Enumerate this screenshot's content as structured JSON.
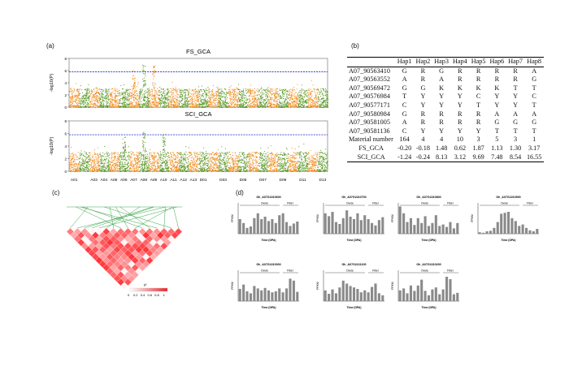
{
  "labels": {
    "a": "(a)",
    "b": "(b)",
    "c": "(c)",
    "d": "(d)"
  },
  "manhattan": {
    "y_label": "-log10(P)",
    "threshold": 5.8,
    "ylim": [
      0,
      8
    ],
    "yticks": [
      "0",
      "2",
      "4",
      "6",
      "8"
    ],
    "chromosomes": [
      "A01",
      "A02",
      "A03",
      "A04",
      "A05",
      "A06",
      "A07",
      "A08",
      "A09",
      "A10",
      "A11",
      "A12",
      "A13",
      "D01",
      "D02",
      "D03",
      "D04",
      "D05",
      "D06",
      "D07",
      "D08",
      "D09",
      "D10",
      "D11",
      "D12",
      "D13"
    ],
    "x_tick_labels": [
      "A01",
      "A03",
      "A04",
      "A05",
      "A06",
      "A07",
      "A08",
      "A09",
      "A10",
      "A11",
      "A12",
      "A13",
      "D01",
      "D03",
      "D05",
      "D07",
      "D09",
      "D11",
      "D13"
    ],
    "colors": {
      "odd": "#f28c1c",
      "even": "#5e9a2a",
      "threshold": "#3344cc"
    },
    "panels": [
      {
        "title": "FS_GCA",
        "peaks": [
          [
            7,
            7.5
          ],
          [
            8,
            7.0
          ],
          [
            6,
            6.1
          ]
        ]
      },
      {
        "title": "SCI_GCA",
        "peaks": [
          [
            7,
            6.4
          ],
          [
            9,
            6.0
          ],
          [
            5,
            5.6
          ]
        ]
      }
    ]
  },
  "haplotype_table": {
    "header": [
      "",
      "Hap1",
      "Hap2",
      "Hap3",
      "Hap4",
      "Hap5",
      "Hap6",
      "Hap7",
      "Hap8"
    ],
    "rows": [
      [
        "A07_90563410",
        "G",
        "R",
        "G",
        "R",
        "R",
        "R",
        "R",
        "A"
      ],
      [
        "A07_90563552",
        "A",
        "R",
        "A",
        "R",
        "R",
        "R",
        "R",
        "G"
      ],
      [
        "A07_90569472",
        "G",
        "G",
        "K",
        "K",
        "K",
        "K",
        "T",
        "T"
      ],
      [
        "A07_90576984",
        "T",
        "Y",
        "Y",
        "Y",
        "C",
        "Y",
        "Y",
        "C"
      ],
      [
        "A07_90577171",
        "C",
        "Y",
        "Y",
        "Y",
        "T",
        "Y",
        "Y",
        "T"
      ],
      [
        "A07_90580984",
        "G",
        "R",
        "R",
        "R",
        "R",
        "A",
        "A",
        "A"
      ],
      [
        "A07_90581005",
        "A",
        "R",
        "R",
        "R",
        "R",
        "G",
        "G",
        "G"
      ],
      [
        "A07_90581136",
        "C",
        "Y",
        "Y",
        "Y",
        "Y",
        "T",
        "T",
        "T"
      ],
      [
        "Material number",
        "164",
        "4",
        "4",
        "10",
        "3",
        "5",
        "3",
        "1"
      ],
      [
        "FS_GCA",
        "-0.20",
        "-0.18",
        "1.48",
        "0.62",
        "1.87",
        "1.13",
        "1.30",
        "3.17"
      ],
      [
        "SCI_GCA",
        "-1.24",
        "-0.24",
        "8.13",
        "3.12",
        "9.69",
        "7.48",
        "8.54",
        "16.55"
      ]
    ]
  },
  "ld_heatmap": {
    "n_snps": 16,
    "legend_title": "r²",
    "legend_ticks": [
      "0",
      "0.2",
      "0.4",
      "0.6",
      "0.8",
      "1"
    ],
    "colors": {
      "low": "#ffffff",
      "high": "#e8262b",
      "lines": "#3aa44a"
    }
  },
  "expression": {
    "y_label": "FPKM",
    "x_label": "Time (DPA)",
    "group_labels": [
      "Ovule",
      "Fiber"
    ],
    "bar_color": "#8a8a8a",
    "charts": [
      {
        "title": "Gh_A07G2210600",
        "values": [
          3,
          2.2,
          1.2,
          1.5,
          3.2,
          4.2,
          3,
          3.5,
          2.6,
          3,
          2.2,
          3.8,
          4.2,
          2.4,
          1.6,
          2.1,
          2.5
        ]
      },
      {
        "title": "Gh_A07G2210700",
        "values": [
          4.2,
          3.6,
          4.5,
          2.4,
          2,
          3.2,
          4.8,
          3.5,
          3,
          4.2,
          2.8,
          3.8,
          3,
          2.2,
          1.7,
          2.8,
          3.4
        ]
      },
      {
        "title": "Gh_A07G2210800",
        "values": [
          5.6,
          4.2,
          2.4,
          3.2,
          1.8,
          3.2,
          2.2,
          3.6,
          1.6,
          2.2,
          3.8,
          1.6,
          1.9,
          1.4,
          2.4,
          1.1,
          2.2
        ]
      },
      {
        "title": "Gh_A07G2210900",
        "values": [
          0.3,
          0.2,
          0.5,
          0.6,
          1.2,
          2.4,
          4.1,
          4.3,
          4.5,
          3.2,
          2.6,
          1.6,
          1.9,
          1.2,
          0.7,
          0.5,
          1.0
        ]
      },
      {
        "title": "Gh_A07G2210000",
        "values": [
          2.5,
          3.4,
          2,
          1.6,
          3.1,
          2.6,
          2.2,
          2.7,
          2.2,
          1.8,
          2,
          2.6,
          1.8,
          2.6,
          4.6,
          4.2,
          1.9
        ]
      },
      {
        "title": "Gh_A07G2211100",
        "values": [
          2.2,
          1.5,
          2.4,
          1.6,
          2.8,
          4.2,
          3.6,
          3.1,
          2.8,
          2.5,
          1.8,
          2.2,
          1.8,
          2.9,
          3.6,
          1.6,
          1.2
        ]
      },
      {
        "title": "Gh_A07G2210200",
        "values": [
          2.2,
          2.6,
          1.6,
          3.2,
          2.1,
          3.2,
          4.4,
          2.1,
          1.2,
          2.4,
          2.8,
          1.4,
          2.4,
          5,
          4.5,
          1.4,
          1.7
        ]
      }
    ]
  }
}
